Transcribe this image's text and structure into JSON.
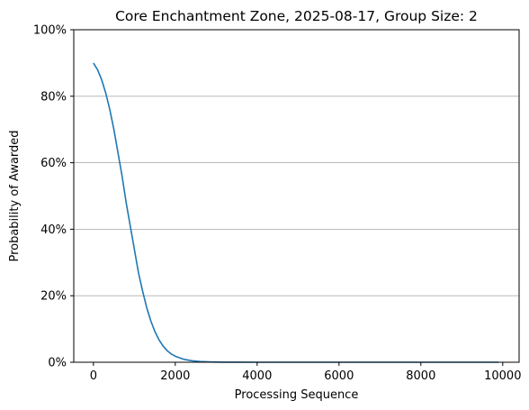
{
  "chart_data": {
    "type": "line",
    "title": "Core Enchantment Zone, 2025-08-17, Group Size: 2",
    "xlabel": "Processing Sequence",
    "ylabel": "Probability of Awarded",
    "xlim": [
      -480,
      10400
    ],
    "ylim": [
      0,
      1
    ],
    "x_ticks": [
      0,
      2000,
      4000,
      6000,
      8000,
      10000
    ],
    "x_tick_labels": [
      "0",
      "2000",
      "4000",
      "6000",
      "8000",
      "10000"
    ],
    "y_ticks": [
      0,
      0.2,
      0.4,
      0.6,
      0.8,
      1.0
    ],
    "y_tick_labels": [
      "0%",
      "20%",
      "40%",
      "60%",
      "80%",
      "100%"
    ],
    "grid": "y-major",
    "line_color": "#1f77b4",
    "series": [
      {
        "x": [
          0,
          100,
          200,
          300,
          400,
          500,
          600,
          700,
          800,
          900,
          1000,
          1100,
          1200,
          1300,
          1400,
          1500,
          1600,
          1700,
          1800,
          1900,
          2000,
          2200,
          2400,
          2600,
          2800,
          3000,
          3200,
          3500,
          4000,
          4500,
          5000,
          6000,
          7000,
          8000,
          9000,
          9900
        ],
        "y": [
          0.9,
          0.88,
          0.85,
          0.81,
          0.76,
          0.7,
          0.63,
          0.56,
          0.48,
          0.41,
          0.34,
          0.27,
          0.215,
          0.165,
          0.125,
          0.093,
          0.068,
          0.049,
          0.035,
          0.025,
          0.018,
          0.009,
          0.0045,
          0.0022,
          0.0011,
          0.0005,
          0.0002,
          0.0001,
          0.0,
          0.0,
          0.0,
          0.0,
          0.0,
          0.0,
          0.0,
          0.0
        ]
      }
    ]
  }
}
